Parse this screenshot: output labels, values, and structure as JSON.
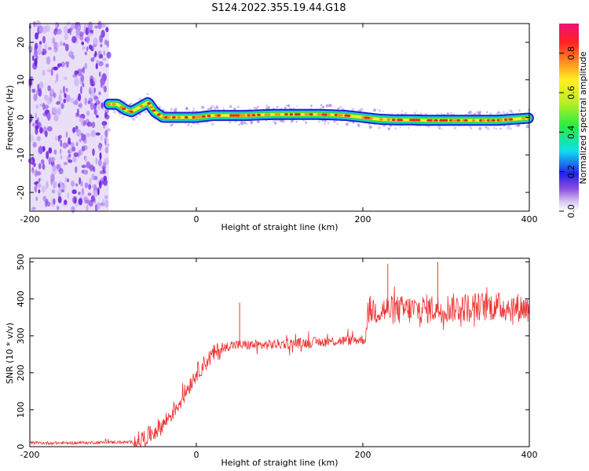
{
  "title": "S124.2022.355.19.44.G18",
  "charts": [
    {
      "type": "heatmap",
      "xlabel": "Height of straight line (km)",
      "ylabel": "Frequency (Hz)",
      "xlim": [
        -200,
        400
      ],
      "ylim": [
        -25,
        25
      ],
      "xticks": [
        "-200",
        "0",
        "200",
        "400"
      ],
      "yticks": [
        "20",
        "10",
        "0",
        "-10",
        "-20"
      ],
      "colorbar": {
        "label": "Normalized spectral amplitude",
        "ticks": [
          "0.0",
          "0.2",
          "0.4",
          "0.6",
          "0.8"
        ],
        "range": [
          0,
          0.95
        ]
      },
      "noise_region_x": [
        -200,
        -105
      ],
      "ridge": {
        "x": [
          -105,
          -95,
          -85,
          -78,
          -70,
          -62,
          -58,
          -50,
          -40,
          -20,
          0,
          20,
          40,
          60,
          80,
          100,
          120,
          140,
          160,
          180,
          200,
          220,
          240,
          260,
          280,
          300,
          320,
          340,
          360,
          380,
          400
        ],
        "freq_hz": [
          3.5,
          3.5,
          2.0,
          1.5,
          2.5,
          3.5,
          4.0,
          1.5,
          0.0,
          0.0,
          0.0,
          0.5,
          0.5,
          0.5,
          0.7,
          0.8,
          0.8,
          0.8,
          0.7,
          0.5,
          0.0,
          -0.5,
          -0.7,
          -0.7,
          -0.8,
          -0.8,
          -0.8,
          -0.8,
          -0.8,
          -0.5,
          -0.2
        ]
      }
    },
    {
      "type": "line",
      "xlabel": "Height of straight line (km)",
      "ylabel": "SNR (10 * v/v)",
      "xlim": [
        -200,
        400
      ],
      "ylim": [
        0,
        510
      ],
      "xticks": [
        "-200",
        "0",
        "200",
        "400"
      ],
      "yticks": [
        "500",
        "400",
        "300",
        "200",
        "100",
        "0"
      ],
      "color": "#ee3333",
      "trend": {
        "x": [
          -200,
          -150,
          -100,
          -75,
          -60,
          -40,
          -20,
          0,
          20,
          40,
          55,
          80,
          120,
          160,
          203,
          207,
          250,
          300,
          350,
          400
        ],
        "snr": [
          10,
          10,
          12,
          12,
          25,
          60,
          120,
          200,
          250,
          275,
          275,
          275,
          280,
          285,
          290,
          370,
          370,
          375,
          380,
          375
        ]
      },
      "spikes": [
        {
          "x": 52,
          "snr": 390
        },
        {
          "x": 290,
          "snr": 500
        },
        {
          "x": 230,
          "snr": 495
        }
      ]
    }
  ]
}
